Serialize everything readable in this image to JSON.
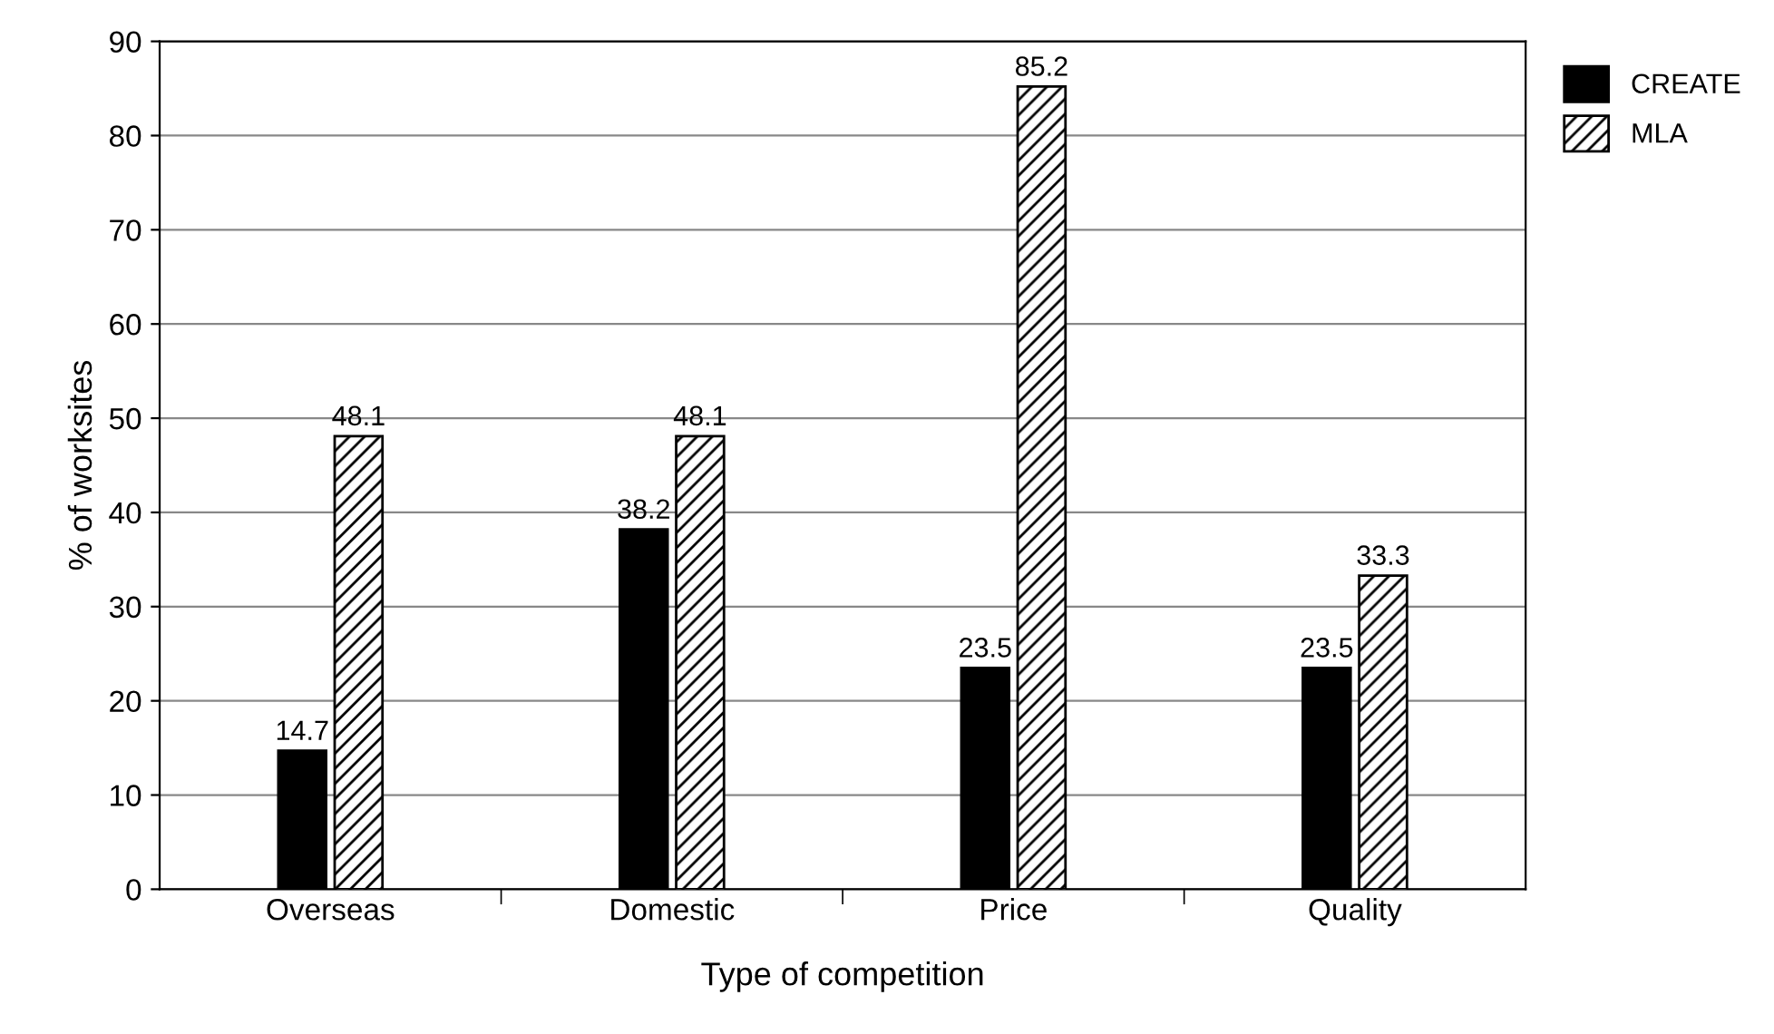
{
  "chart_data": {
    "type": "bar",
    "xlabel": "Type of competition",
    "ylabel": "% of worksites",
    "categories": [
      "Overseas",
      "Domestic",
      "Price",
      "Quality"
    ],
    "series": [
      {
        "name": "CREATE",
        "color": "#000000",
        "values": [
          14.7,
          38.2,
          23.5,
          23.5
        ]
      },
      {
        "name": "MLA",
        "color": "#000000",
        "values": [
          48.1,
          48.1,
          85.2,
          33.3
        ]
      }
    ],
    "ylim": [
      0,
      90
    ],
    "yticks": [
      0,
      10,
      20,
      30,
      40,
      50,
      60,
      70,
      80,
      90
    ],
    "grid": "y",
    "legend": "top right",
    "data_labels": true
  }
}
